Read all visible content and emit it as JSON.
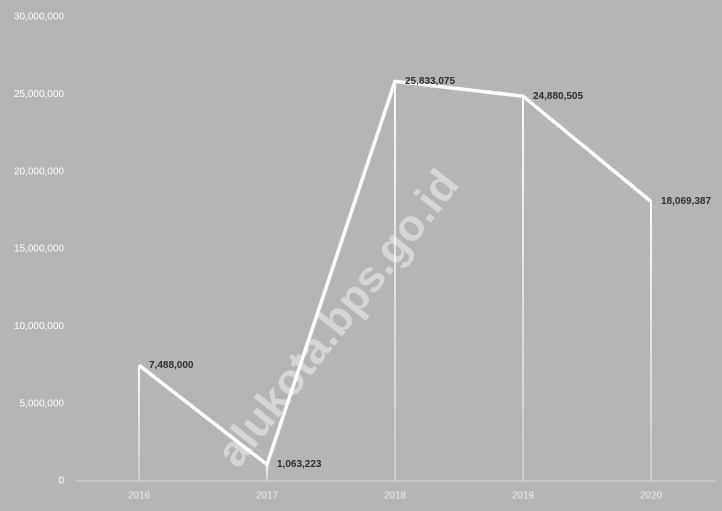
{
  "chart_data": {
    "type": "line",
    "categories": [
      "2016",
      "2017",
      "2018",
      "2019",
      "2020"
    ],
    "values": [
      7488000,
      1063223,
      25833075,
      24880505,
      18069387
    ],
    "value_labels": [
      "7,488,000",
      "1,063,223",
      "25,833,075",
      "24,880,505",
      "18,069,387"
    ],
    "color": "#ffffff",
    "ylim": [
      0,
      30000000
    ],
    "yticks": [
      0,
      {
        "value": 5000000,
        "label": "5,000,000"
      },
      {
        "value": 10000000,
        "label": "10,000,000"
      },
      {
        "value": 15000000,
        "label": "15,000,000"
      },
      {
        "value": 20000000,
        "label": "20,000,000"
      },
      {
        "value": 25000000,
        "label": "25,000,000"
      },
      {
        "value": 30000000,
        "label": "30,000,000"
      }
    ],
    "drop_lines": true,
    "watermark": "alukota.bps.go.id"
  }
}
